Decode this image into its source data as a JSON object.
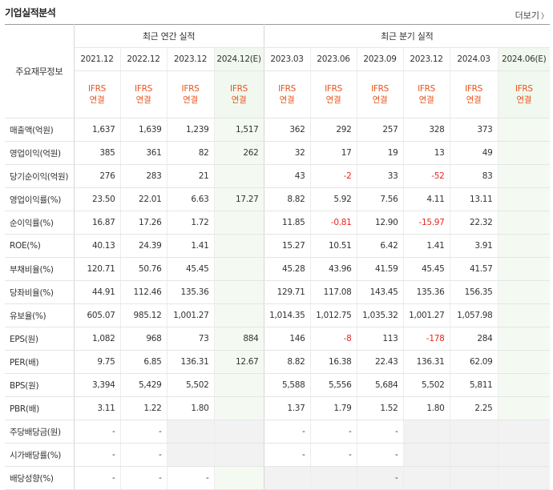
{
  "header": {
    "title": "기업실적분석",
    "more": "더보기"
  },
  "table": {
    "corner": "주요재무정보",
    "annual_group": "최근 연간 실적",
    "quarter_group": "최근 분기 실적",
    "periods": [
      "2021.12",
      "2022.12",
      "2023.12",
      "2024.12(E)",
      "2023.03",
      "2023.06",
      "2023.09",
      "2023.12",
      "2024.03",
      "2024.06(E)"
    ],
    "standard_line1": "IFRS",
    "standard_line2": "연결",
    "rows": [
      {
        "label": "매출액(억원)",
        "values": [
          "1,637",
          "1,639",
          "1,239",
          "1,517",
          "362",
          "292",
          "257",
          "328",
          "373",
          ""
        ]
      },
      {
        "label": "영업이익(억원)",
        "values": [
          "385",
          "361",
          "82",
          "262",
          "32",
          "17",
          "19",
          "13",
          "49",
          ""
        ]
      },
      {
        "label": "당기순이익(억원)",
        "values": [
          "276",
          "283",
          "21",
          "",
          "43",
          "-2",
          "33",
          "-52",
          "83",
          ""
        ]
      },
      {
        "label": "영업이익률(%)",
        "values": [
          "23.50",
          "22.01",
          "6.63",
          "17.27",
          "8.82",
          "5.92",
          "7.56",
          "4.11",
          "13.11",
          ""
        ]
      },
      {
        "label": "순이익률(%)",
        "values": [
          "16.87",
          "17.26",
          "1.72",
          "",
          "11.85",
          "-0.81",
          "12.90",
          "-15.97",
          "22.32",
          ""
        ]
      },
      {
        "label": "ROE(%)",
        "values": [
          "40.13",
          "24.39",
          "1.41",
          "",
          "15.27",
          "10.51",
          "6.42",
          "1.41",
          "3.91",
          ""
        ]
      },
      {
        "label": "부채비율(%)",
        "values": [
          "120.71",
          "50.76",
          "45.45",
          "",
          "45.28",
          "43.96",
          "41.59",
          "45.45",
          "41.57",
          ""
        ]
      },
      {
        "label": "당좌비율(%)",
        "values": [
          "44.91",
          "112.46",
          "135.36",
          "",
          "129.71",
          "117.08",
          "143.45",
          "135.36",
          "156.35",
          ""
        ]
      },
      {
        "label": "유보율(%)",
        "values": [
          "605.07",
          "985.12",
          "1,001.27",
          "",
          "1,014.35",
          "1,012.75",
          "1,035.32",
          "1,001.27",
          "1,057.98",
          ""
        ]
      },
      {
        "label": "EPS(원)",
        "values": [
          "1,082",
          "968",
          "73",
          "884",
          "146",
          "-8",
          "113",
          "-178",
          "284",
          ""
        ]
      },
      {
        "label": "PER(배)",
        "values": [
          "9.75",
          "6.85",
          "136.31",
          "12.67",
          "8.82",
          "16.38",
          "22.43",
          "136.31",
          "62.09",
          ""
        ]
      },
      {
        "label": "BPS(원)",
        "values": [
          "3,394",
          "5,429",
          "5,502",
          "",
          "5,588",
          "5,556",
          "5,684",
          "5,502",
          "5,811",
          ""
        ]
      },
      {
        "label": "PBR(배)",
        "values": [
          "3.11",
          "1.22",
          "1.80",
          "",
          "1.37",
          "1.79",
          "1.52",
          "1.80",
          "2.25",
          ""
        ]
      },
      {
        "label": "주당배당금(원)",
        "values": [
          "-",
          "-",
          "",
          "",
          "-",
          "-",
          "-",
          "",
          "",
          ""
        ]
      },
      {
        "label": "시가배당률(%)",
        "values": [
          "-",
          "-",
          "",
          "",
          "-",
          "-",
          "-",
          "",
          "",
          ""
        ]
      },
      {
        "label": "배당성향(%)",
        "values": [
          "-",
          "-",
          "-",
          "",
          "",
          "",
          "-",
          "",
          "",
          ""
        ]
      }
    ]
  }
}
